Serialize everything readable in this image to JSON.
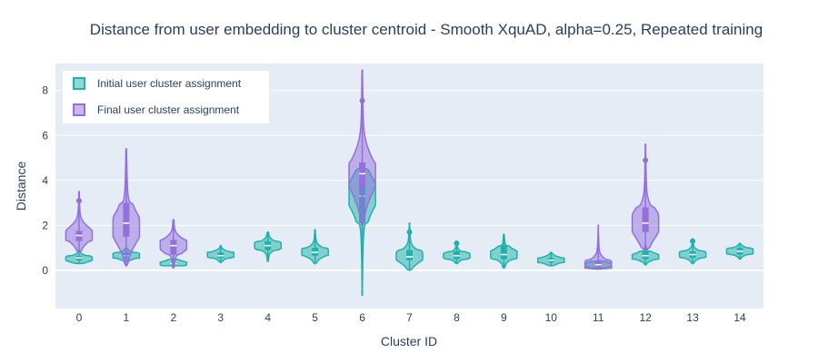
{
  "chart_data": {
    "type": "violin",
    "title": "Distance from user embedding to cluster centroid - Smooth XquAD, alpha=0.25, Repeated training",
    "xlabel": "Cluster ID",
    "ylabel": "Distance",
    "categories": [
      "0",
      "1",
      "2",
      "3",
      "4",
      "5",
      "6",
      "7",
      "8",
      "9",
      "10",
      "11",
      "12",
      "13",
      "14"
    ],
    "x_tick_labels": [
      "0",
      "1",
      "2",
      "3",
      "4",
      "5",
      "6",
      "7",
      "8",
      "9",
      "10",
      "11",
      "12",
      "13",
      "14"
    ],
    "y_ticks": [
      0,
      2,
      4,
      6,
      8
    ],
    "ylim": [
      -1.7,
      9.2
    ],
    "grid": true,
    "legend_placement": "top-left",
    "series": [
      {
        "name": "Initial user cluster assignment",
        "color": "#20b2aa",
        "fill": "rgba(32,178,170,0.5)",
        "violins": [
          {
            "x": 0,
            "min": 0.3,
            "q1": 0.45,
            "median": 0.55,
            "q3": 0.65,
            "max": 0.9,
            "mode": 0.5,
            "outliers": []
          },
          {
            "x": 1,
            "min": 0.4,
            "q1": 0.55,
            "median": 0.65,
            "q3": 0.8,
            "max": 1.0,
            "mode": 0.65,
            "outliers": []
          },
          {
            "x": 2,
            "min": 0.2,
            "q1": 0.25,
            "median": 0.3,
            "q3": 0.35,
            "max": 0.5,
            "mode": 0.3,
            "outliers": []
          },
          {
            "x": 3,
            "min": 0.35,
            "q1": 0.55,
            "median": 0.65,
            "q3": 0.8,
            "max": 1.1,
            "mode": 0.7,
            "outliers": []
          },
          {
            "x": 4,
            "min": 0.4,
            "q1": 0.9,
            "median": 1.1,
            "q3": 1.3,
            "max": 1.7,
            "mode": 1.1,
            "outliers": []
          },
          {
            "x": 5,
            "min": 0.3,
            "q1": 0.65,
            "median": 0.8,
            "q3": 1.0,
            "max": 1.8,
            "mode": 0.8,
            "outliers": []
          },
          {
            "x": 6,
            "min": -1.1,
            "q1": 2.1,
            "median": 3.3,
            "q3": 3.7,
            "max": 4.6,
            "mode": 3.5,
            "outliers": []
          },
          {
            "x": 7,
            "min": 0.0,
            "q1": 0.45,
            "median": 0.6,
            "q3": 0.9,
            "max": 2.1,
            "mode": 0.6,
            "outliers": [
              1.7
            ]
          },
          {
            "x": 8,
            "min": 0.3,
            "q1": 0.5,
            "median": 0.65,
            "q3": 0.85,
            "max": 1.3,
            "mode": 0.65,
            "outliers": [
              1.2
            ]
          },
          {
            "x": 9,
            "min": 0.1,
            "q1": 0.5,
            "median": 0.7,
            "q3": 1.1,
            "max": 1.6,
            "mode": 0.7,
            "outliers": []
          },
          {
            "x": 10,
            "min": 0.2,
            "q1": 0.35,
            "median": 0.45,
            "q3": 0.55,
            "max": 0.8,
            "mode": 0.45,
            "outliers": []
          },
          {
            "x": 11,
            "min": 0.1,
            "q1": 0.2,
            "median": 0.25,
            "q3": 0.3,
            "max": 0.4,
            "mode": 0.25,
            "outliers": []
          },
          {
            "x": 12,
            "min": 0.25,
            "q1": 0.5,
            "median": 0.65,
            "q3": 0.85,
            "max": 1.1,
            "mode": 0.6,
            "outliers": []
          },
          {
            "x": 13,
            "min": 0.3,
            "q1": 0.55,
            "median": 0.7,
            "q3": 0.85,
            "max": 1.4,
            "mode": 0.7,
            "outliers": [
              1.3
            ]
          },
          {
            "x": 14,
            "min": 0.5,
            "q1": 0.7,
            "median": 0.85,
            "q3": 1.0,
            "max": 1.2,
            "mode": 0.85,
            "outliers": []
          }
        ]
      },
      {
        "name": "Final user cluster assignment",
        "color": "#9370db",
        "fill": "rgba(147,112,219,0.5)",
        "violins": [
          {
            "x": 0,
            "min": 0.8,
            "q1": 1.3,
            "median": 1.55,
            "q3": 1.75,
            "max": 3.5,
            "mode": 1.6,
            "outliers": [
              3.1
            ]
          },
          {
            "x": 1,
            "min": 0.2,
            "q1": 1.5,
            "median": 2.1,
            "q3": 3.0,
            "max": 5.4,
            "mode": 1.8,
            "outliers": []
          },
          {
            "x": 2,
            "min": 0.1,
            "q1": 0.7,
            "median": 1.1,
            "q3": 1.35,
            "max": 2.25,
            "mode": 1.15,
            "outliers": []
          },
          {
            "x": 6,
            "min": 2.0,
            "q1": 3.7,
            "median": 4.3,
            "q3": 4.8,
            "max": 8.9,
            "mode": 4.2,
            "outliers": [
              7.55
            ]
          },
          {
            "x": 11,
            "min": 0.05,
            "q1": 0.15,
            "median": 0.25,
            "q3": 0.45,
            "max": 2.0,
            "mode": 0.2,
            "outliers": []
          },
          {
            "x": 12,
            "min": 0.9,
            "q1": 1.7,
            "median": 2.1,
            "q3": 2.8,
            "max": 5.6,
            "mode": 2.0,
            "outliers": [
              4.9
            ]
          }
        ]
      }
    ]
  }
}
